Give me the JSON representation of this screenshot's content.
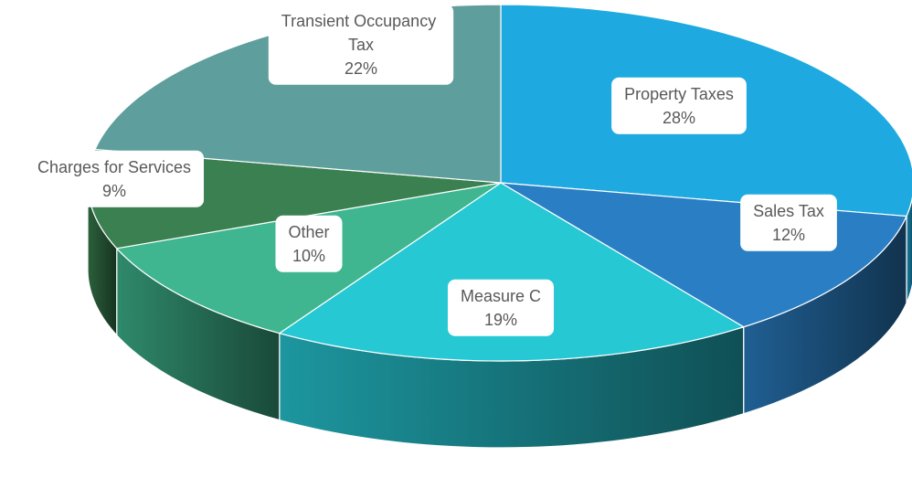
{
  "chart_data": {
    "type": "pie",
    "categories": [
      "Property Taxes",
      "Sales Tax",
      "Measure C",
      "Other",
      "Charges for Services",
      "Transient Occupancy Tax"
    ],
    "values": [
      28,
      12,
      19,
      10,
      9,
      22
    ],
    "value_labels": [
      "28%",
      "12%",
      "19%",
      "10%",
      "9%",
      "22%"
    ],
    "colors": [
      "#1eaae0",
      "#2a7fc4",
      "#26c8d4",
      "#3fb68f",
      "#3a8050",
      "#5e9e9c"
    ]
  }
}
